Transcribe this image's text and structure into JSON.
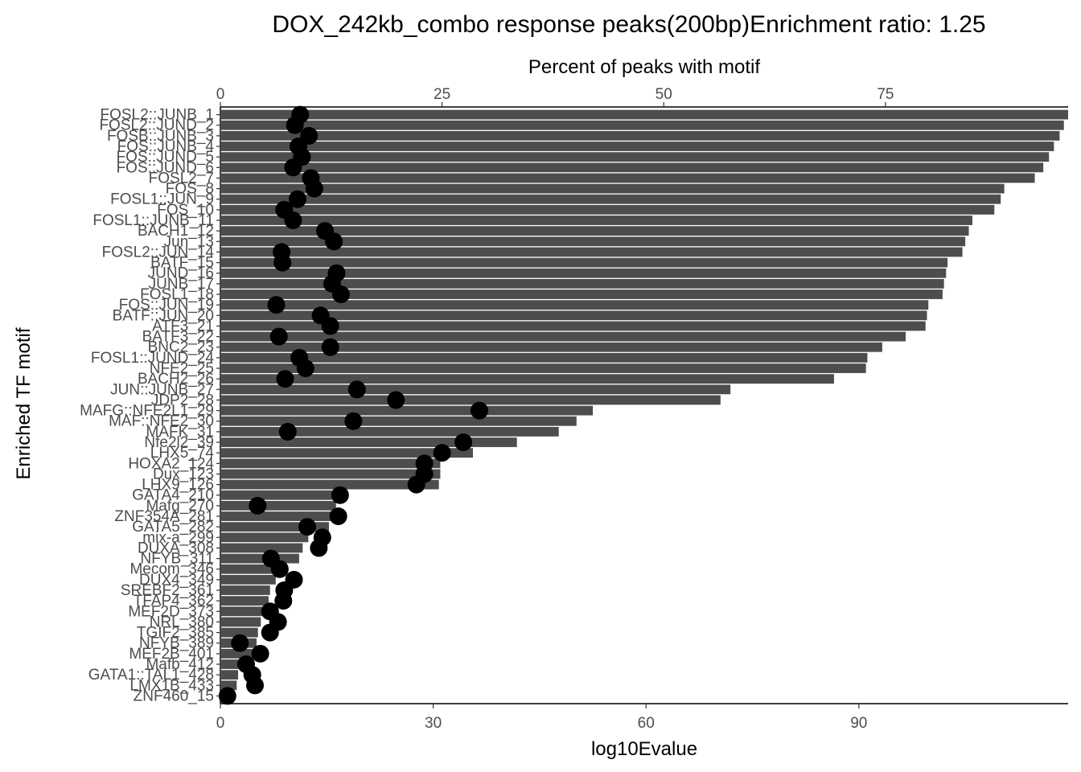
{
  "chart_data": {
    "type": "bar",
    "title": "DOX_242kb_combo response peaks(200bp)Enrichment ratio: 1.25",
    "ylabel": "Enriched TF motif",
    "x_bottom_label": "log10Evalue",
    "x_top_label": "Percent of peaks with motif",
    "x_bottom_ticks": [
      0,
      30,
      60,
      90
    ],
    "x_bottom_lim": [
      0,
      119.5
    ],
    "x_top_ticks": [
      0,
      25,
      50,
      75
    ],
    "x_top_lim": [
      0,
      95.6
    ],
    "grid": false,
    "legend": "none",
    "bar_color": "#4d4d4d",
    "point_color": "#000000",
    "categories": [
      "FOSL2::JUNB_1",
      "FOSL2::JUND_2",
      "FOSB::JUNB_3",
      "FOS::JUNB_4",
      "FOS::JUND_5",
      "FOS::JUND_6",
      "FOSL2_7",
      "FOS_8",
      "FOSL1::JUN_9",
      "FOS_10",
      "FOSL1::JUNB_11",
      "BACH1_12",
      "Jun_13",
      "FOSL2::JUN_14",
      "BATF_15",
      "JUND_16",
      "JUNB_17",
      "FOSL1_18",
      "FOS::JUN_19",
      "BATF::JUN_20",
      "ATF3_21",
      "BATF3_22",
      "BNC2_23",
      "FOSL1::JUND_24",
      "NFE2_25",
      "BACH2_26",
      "JUN::JUNB_27",
      "JDP2_28",
      "MAFG::NFE2L1_29",
      "MAF::NFE2_30",
      "MAFK_31",
      "Nfe2l2_39",
      "LHX5_74",
      "HOXA2_124",
      "Dux_123",
      "LHX9_126",
      "GATA4_210",
      "Mafg_270",
      "ZNF354A_281",
      "GATA5_282",
      "mix-a_299",
      "DUXA_308",
      "NFYB_311",
      "Mecom_346",
      "DUX4_349",
      "SREBF2_361",
      "TFAP4_362",
      "MEF2D_373",
      "NRL_380",
      "TGIF2_385",
      "NFYB_389",
      "MEF2B_401",
      "Mafb_412",
      "GATA1::TAL1_428",
      "LMX1B_433",
      "ZNF460_15"
    ],
    "series": [
      {
        "name": "log10Evalue",
        "values": [
          119.5,
          118.9,
          118.3,
          117.5,
          116.8,
          116.0,
          114.8,
          110.5,
          110.0,
          109.1,
          106.0,
          105.5,
          105.0,
          104.6,
          102.5,
          102.3,
          102.0,
          101.8,
          99.8,
          99.6,
          99.4,
          96.6,
          93.3,
          91.2,
          91.0,
          86.5,
          71.9,
          70.5,
          52.5,
          50.2,
          47.7,
          41.8,
          35.6,
          31.0,
          31.0,
          30.8,
          16.4,
          16.3,
          15.8,
          15.3,
          12.4,
          11.6,
          11.1,
          8.2,
          7.8,
          7.0,
          6.8,
          6.3,
          5.7,
          5.3,
          5.1,
          5.0,
          4.0,
          2.5,
          2.3,
          0.7
        ]
      },
      {
        "name": "Percent of peaks with motif",
        "values": [
          9.0,
          8.4,
          10.0,
          8.8,
          9.2,
          8.2,
          10.2,
          10.6,
          8.7,
          7.2,
          8.2,
          11.8,
          12.8,
          6.9,
          7.0,
          13.1,
          12.6,
          13.6,
          6.3,
          11.3,
          12.4,
          6.6,
          12.4,
          8.9,
          9.6,
          7.3,
          15.4,
          19.8,
          29.2,
          15.0,
          7.6,
          27.4,
          25.0,
          23.0,
          23.0,
          22.1,
          13.5,
          4.2,
          13.3,
          9.8,
          11.5,
          11.1,
          5.7,
          6.7,
          8.3,
          7.2,
          7.1,
          5.6,
          6.5,
          5.6,
          2.2,
          4.5,
          2.9,
          3.6,
          3.9,
          0.8
        ]
      }
    ]
  }
}
